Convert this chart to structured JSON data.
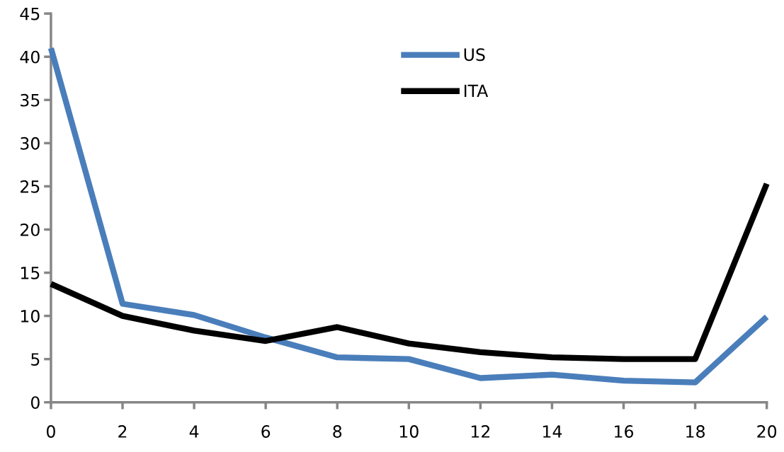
{
  "chart_data": {
    "type": "line",
    "x": [
      0,
      2,
      4,
      6,
      8,
      10,
      12,
      14,
      16,
      18,
      20
    ],
    "series": [
      {
        "name": "US",
        "color": "#4a7ebb",
        "values": [
          41,
          11.4,
          10.1,
          7.5,
          5.2,
          5.0,
          2.8,
          3.2,
          2.5,
          2.3,
          9.9
        ]
      },
      {
        "name": "ITA",
        "color": "#000000",
        "values": [
          13.7,
          10.0,
          8.3,
          7.1,
          8.7,
          6.8,
          5.8,
          5.2,
          5.0,
          5.0,
          25.3
        ]
      }
    ],
    "xlim": [
      0,
      20
    ],
    "xticks": [
      0,
      2,
      4,
      6,
      8,
      10,
      12,
      14,
      16,
      18,
      20
    ],
    "ylim": [
      0,
      45
    ],
    "yticks": [
      0,
      5,
      10,
      15,
      20,
      25,
      30,
      35,
      40,
      45
    ],
    "grid": false,
    "legend": "top",
    "marker": "none",
    "line_style": "solid"
  }
}
